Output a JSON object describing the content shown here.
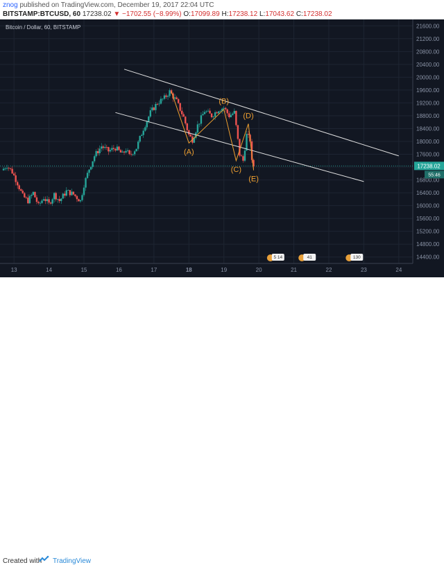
{
  "header": {
    "author": "znog",
    "published_text": "published on TradingView.com, December 19, 2017 22:04 UTC",
    "symbol": "BITSTAMP:BTCUSD, 60",
    "last": "17238.02",
    "change": "▼ −1702.55 (−8.99%)",
    "o_label": "O:",
    "o_value": "17099.89",
    "h_label": "H:",
    "h_value": "17238.12",
    "l_label": "L:",
    "l_value": "17043.62",
    "c_label": "C:",
    "c_value": "17238.02"
  },
  "chart_title": "Bitcoin / Dollar, 60, BITSTAMP",
  "price_badge": {
    "price": "17238.02",
    "countdown": "55:46"
  },
  "wave_labels": [
    "(A)",
    "(B)",
    "(C)",
    "(D)",
    "(E)"
  ],
  "event_badges": [
    "5 14",
    "41",
    "130"
  ],
  "footer": {
    "created_with": "Created with",
    "brand": "TradingView"
  },
  "colors": {
    "background": "#121722",
    "up_candle": "#26a69a",
    "down_candle": "#ef5350",
    "wave_line": "#f0a030",
    "channel_line": "#e0e0e0",
    "price_badge": "#26a69a"
  },
  "chart_data": {
    "type": "candlestick",
    "title": "Bitcoin / Dollar, 60, BITSTAMP",
    "x_ticks": [
      "13",
      "14",
      "15",
      "16",
      "17",
      "18",
      "19",
      "20",
      "21",
      "22",
      "23",
      "24"
    ],
    "y_ticks": [
      "14400.00",
      "14800.00",
      "15200.00",
      "15600.00",
      "16000.00",
      "16400.00",
      "16800.00",
      "17200.00",
      "17600.00",
      "18000.00",
      "18400.00",
      "18800.00",
      "19200.00",
      "19600.00",
      "20000.00",
      "20400.00",
      "20800.00",
      "21200.00",
      "21600.00"
    ],
    "y_range": [
      14200,
      21800
    ],
    "x_range": [
      12.6,
      24.4
    ],
    "last_price": 17238.02,
    "close_path": [
      [
        12.65,
        17100
      ],
      [
        12.8,
        17250
      ],
      [
        12.95,
        17050
      ],
      [
        13.1,
        16700
      ],
      [
        13.25,
        16300
      ],
      [
        13.4,
        16150
      ],
      [
        13.55,
        16400
      ],
      [
        13.7,
        16000
      ],
      [
        13.85,
        16250
      ],
      [
        14.0,
        16050
      ],
      [
        14.15,
        16350
      ],
      [
        14.3,
        16150
      ],
      [
        14.5,
        16450
      ],
      [
        14.7,
        16350
      ],
      [
        14.9,
        16150
      ],
      [
        15.0,
        16650
      ],
      [
        15.15,
        17150
      ],
      [
        15.3,
        17550
      ],
      [
        15.5,
        17850
      ],
      [
        15.7,
        17700
      ],
      [
        15.9,
        17800
      ],
      [
        16.1,
        17600
      ],
      [
        16.2,
        17750
      ],
      [
        16.3,
        17550
      ],
      [
        16.5,
        17800
      ],
      [
        16.7,
        18400
      ],
      [
        16.9,
        18900
      ],
      [
        17.1,
        19200
      ],
      [
        17.3,
        19350
      ],
      [
        17.45,
        19550
      ],
      [
        17.65,
        19250
      ],
      [
        17.85,
        18750
      ],
      [
        18.0,
        18200
      ],
      [
        18.1,
        18050
      ],
      [
        18.25,
        18500
      ],
      [
        18.45,
        18950
      ],
      [
        18.65,
        18800
      ],
      [
        18.85,
        19000
      ],
      [
        19.0,
        19050
      ],
      [
        19.15,
        18800
      ],
      [
        19.3,
        18900
      ],
      [
        19.45,
        17600
      ],
      [
        19.55,
        17400
      ],
      [
        19.65,
        18200
      ],
      [
        19.75,
        18050
      ],
      [
        19.8,
        17350
      ],
      [
        19.85,
        17238
      ]
    ],
    "wave_points": {
      "x": [
        17.5,
        18.0,
        19.0,
        19.35,
        19.7,
        19.85
      ],
      "y": [
        19550,
        17950,
        19000,
        17400,
        18550,
        17100
      ]
    },
    "channel_lines": [
      {
        "x": [
          16.15,
          24.0
        ],
        "y": [
          20250,
          17550
        ]
      },
      {
        "x": [
          15.9,
          23.0
        ],
        "y": [
          18900,
          16750
        ]
      }
    ]
  }
}
